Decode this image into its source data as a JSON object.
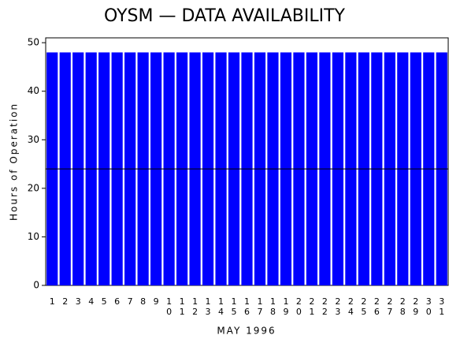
{
  "chart_data": {
    "type": "bar",
    "title": "OYSM — DATA AVAILABILITY",
    "x_label": "MAY 1996",
    "y_label": "Hours of Operation",
    "categories": [
      "1",
      "2",
      "3",
      "4",
      "5",
      "6",
      "7",
      "8",
      "9",
      "10",
      "11",
      "12",
      "13",
      "14",
      "15",
      "16",
      "17",
      "18",
      "19",
      "20",
      "21",
      "22",
      "23",
      "24",
      "25",
      "26",
      "27",
      "28",
      "29",
      "30",
      "31"
    ],
    "values": [
      48,
      48,
      48,
      48,
      48,
      48,
      48,
      48,
      48,
      48,
      48,
      48,
      48,
      48,
      48,
      48,
      48,
      48,
      48,
      48,
      48,
      48,
      48,
      48,
      48,
      48,
      48,
      48,
      48,
      48,
      48
    ],
    "color": "#0000ff",
    "reference_line": 24,
    "ylim": [
      0,
      51
    ],
    "yticks": [
      0,
      10,
      20,
      30,
      40,
      50
    ]
  }
}
